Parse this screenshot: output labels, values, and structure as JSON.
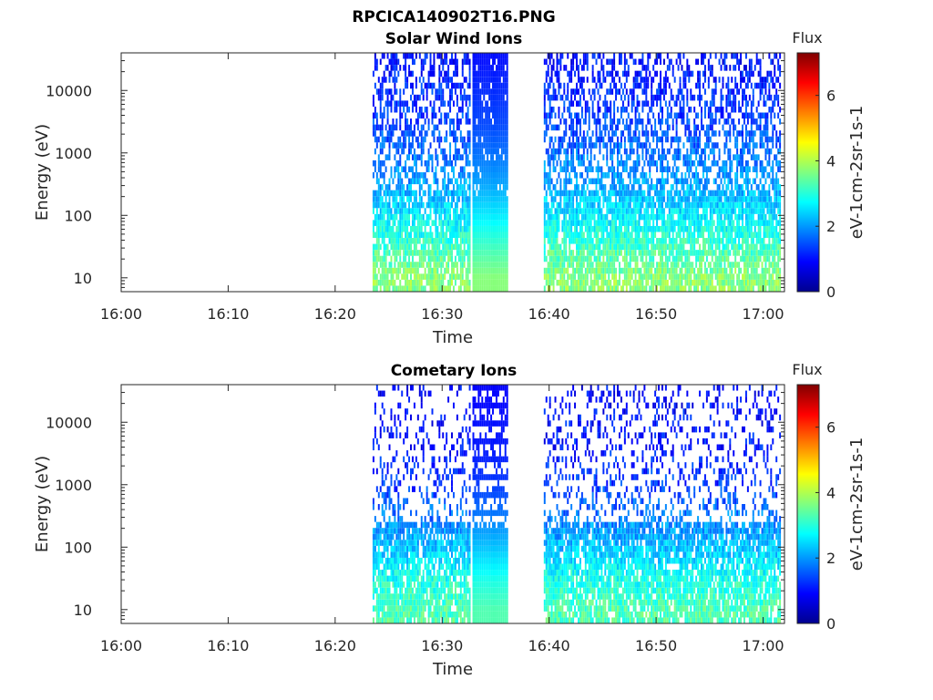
{
  "figure": {
    "title": "RPCICA140902T16.PNG"
  },
  "chart_data": [
    {
      "type": "heatmap",
      "title": "Solar Wind Ions",
      "xlabel": "Time",
      "ylabel": "Energy (eV)",
      "x_ticks": [
        "16:00",
        "16:10",
        "16:20",
        "16:30",
        "16:40",
        "16:50",
        "17:00"
      ],
      "x_range": [
        "16:00",
        "17:02"
      ],
      "y_scale": "log",
      "y_ticks": [
        "10",
        "100",
        "1000",
        "10000"
      ],
      "y_range": [
        6,
        40000
      ],
      "colorbar": {
        "title": "Flux",
        "label": "eV-1cm-2sr-1s-1",
        "colormap": "jet",
        "range": [
          0,
          7.3
        ],
        "ticks": [
          "0",
          "2",
          "4",
          "6"
        ]
      },
      "data_intervals": [
        [
          "16:23:30",
          "16:32:40"
        ],
        [
          "16:32:50",
          "16:36:10"
        ],
        [
          "16:39:30",
          "17:01:40"
        ]
      ],
      "gap_intervals": [
        [
          "16:36:10",
          "16:39:30"
        ]
      ],
      "flux_by_energy": [
        {
          "energy_eV": 10,
          "flux": 3.7
        },
        {
          "energy_eV": 30,
          "flux": 3.2
        },
        {
          "energy_eV": 100,
          "flux": 2.6
        },
        {
          "energy_eV": 300,
          "flux": 2.1
        },
        {
          "energy_eV": 1000,
          "flux": 1.7
        },
        {
          "energy_eV": 3000,
          "flux": 1.4
        },
        {
          "energy_eV": 10000,
          "flux": 1.2
        },
        {
          "energy_eV": 30000,
          "flux": 1.0
        }
      ]
    },
    {
      "type": "heatmap",
      "title": "Cometary Ions",
      "xlabel": "Time",
      "ylabel": "Energy (eV)",
      "x_ticks": [
        "16:00",
        "16:10",
        "16:20",
        "16:30",
        "16:40",
        "16:50",
        "17:00"
      ],
      "x_range": [
        "16:00",
        "17:02"
      ],
      "y_scale": "log",
      "y_ticks": [
        "10",
        "100",
        "1000",
        "10000"
      ],
      "y_range": [
        6,
        40000
      ],
      "colorbar": {
        "title": "Flux",
        "label": "eV-1cm-2sr-1s-1",
        "colormap": "jet",
        "range": [
          0,
          7.3
        ],
        "ticks": [
          "0",
          "2",
          "4",
          "6"
        ]
      },
      "data_intervals": [
        [
          "16:23:30",
          "16:32:40"
        ],
        [
          "16:32:50",
          "16:36:10"
        ],
        [
          "16:39:30",
          "17:01:40"
        ]
      ],
      "gap_intervals": [
        [
          "16:36:10",
          "16:39:30"
        ]
      ],
      "flux_by_energy": [
        {
          "energy_eV": 10,
          "flux": 3.3
        },
        {
          "energy_eV": 30,
          "flux": 2.9
        },
        {
          "energy_eV": 100,
          "flux": 2.3
        },
        {
          "energy_eV": 300,
          "flux": 1.8
        },
        {
          "energy_eV": 1000,
          "flux": 1.3
        },
        {
          "energy_eV": 3000,
          "flux": 1.1
        },
        {
          "energy_eV": 10000,
          "flux": 1.0
        },
        {
          "energy_eV": 30000,
          "flux": 0.9
        }
      ]
    }
  ]
}
